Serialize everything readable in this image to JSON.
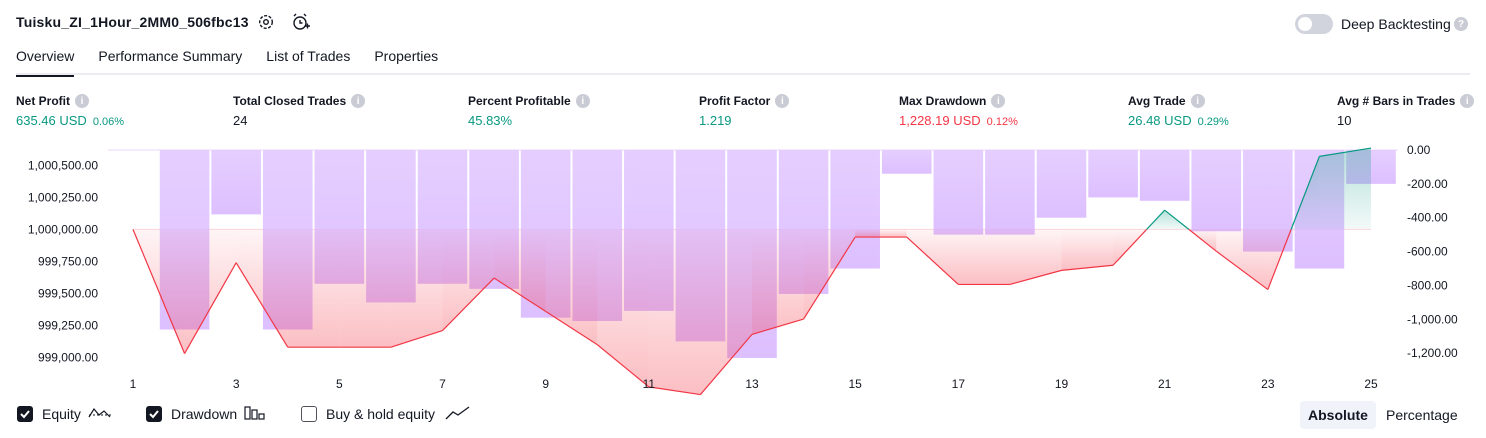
{
  "header": {
    "title": "Tuisku_ZI_1Hour_2MM0_506fbc13",
    "settings_icon": "gear-icon",
    "alert_icon": "alarm-clock-add-icon",
    "deep_backtesting_label": "Deep Backtesting",
    "deep_backtesting_enabled": false
  },
  "tabs": [
    {
      "label": "Overview",
      "active": true
    },
    {
      "label": "Performance Summary",
      "active": false
    },
    {
      "label": "List of Trades",
      "active": false
    },
    {
      "label": "Properties",
      "active": false
    }
  ],
  "metrics": [
    {
      "label": "Net Profit",
      "value": "635.46 USD",
      "pct": "0.06%",
      "tone": "pos"
    },
    {
      "label": "Total Closed Trades",
      "value": "24",
      "pct": "",
      "tone": "neutral"
    },
    {
      "label": "Percent Profitable",
      "value": "45.83%",
      "pct": "",
      "tone": "pos"
    },
    {
      "label": "Profit Factor",
      "value": "1.219",
      "pct": "",
      "tone": "pos"
    },
    {
      "label": "Max Drawdown",
      "value": "1,228.19 USD",
      "pct": "0.12%",
      "tone": "neg"
    },
    {
      "label": "Avg Trade",
      "value": "26.48 USD",
      "pct": "0.29%",
      "tone": "pos"
    },
    {
      "label": "Avg # Bars in Trades",
      "value": "10",
      "pct": "",
      "tone": "neutral"
    }
  ],
  "chart_data": {
    "type": "line",
    "x": [
      1,
      2,
      3,
      4,
      5,
      6,
      7,
      8,
      9,
      10,
      11,
      12,
      13,
      14,
      15,
      16,
      17,
      18,
      19,
      20,
      21,
      22,
      23,
      24,
      25
    ],
    "x_tick_labels": [
      "1",
      "3",
      "5",
      "7",
      "9",
      "11",
      "13",
      "15",
      "17",
      "19",
      "21",
      "23",
      "25"
    ],
    "baseline": 1000000,
    "series": [
      {
        "name": "Equity",
        "axis": "left",
        "values": [
          1000000,
          999030,
          999740,
          999080,
          999080,
          999080,
          999210,
          999620,
          999360,
          999100,
          998770,
          998710,
          999180,
          999300,
          999940,
          999940,
          999570,
          999570,
          999680,
          999720,
          1000150,
          999830,
          999530,
          1000570,
          1000635
        ]
      },
      {
        "name": "Drawdown",
        "axis": "right",
        "type": "bar",
        "values": [
          0,
          -1060,
          -380,
          -1060,
          -790,
          -900,
          -790,
          -820,
          -990,
          -1010,
          -950,
          -1130,
          -1228,
          -850,
          -700,
          -140,
          -500,
          -500,
          -400,
          -280,
          -300,
          -480,
          -600,
          -700,
          -200
        ]
      }
    ],
    "left_axis": {
      "ticks": [
        "1,000,500.00",
        "1,000,250.00",
        "1,000,000.00",
        "999,750.00",
        "999,500.00",
        "999,250.00",
        "999,000.00"
      ],
      "ylim": [
        998980,
        1000620
      ]
    },
    "right_axis": {
      "ticks": [
        "0.00",
        "-200.00",
        "-400.00",
        "-600.00",
        "-800.00",
        "-1,000.00",
        "-1,200.00"
      ],
      "ylim": [
        -1240,
        0
      ]
    },
    "colors": {
      "profit": "#089981",
      "loss": "#f23645",
      "drawdown": "#c9a3ff",
      "grid": "#f0f3fa"
    }
  },
  "legend": [
    {
      "label": "Equity",
      "checked": true,
      "icon": "equity-line-icon"
    },
    {
      "label": "Drawdown",
      "checked": true,
      "icon": "drawdown-bars-icon"
    },
    {
      "label": "Buy & hold equity",
      "checked": false,
      "icon": "buy-hold-line-icon"
    }
  ],
  "mode": {
    "options": [
      "Absolute",
      "Percentage"
    ],
    "selected": "Absolute"
  }
}
